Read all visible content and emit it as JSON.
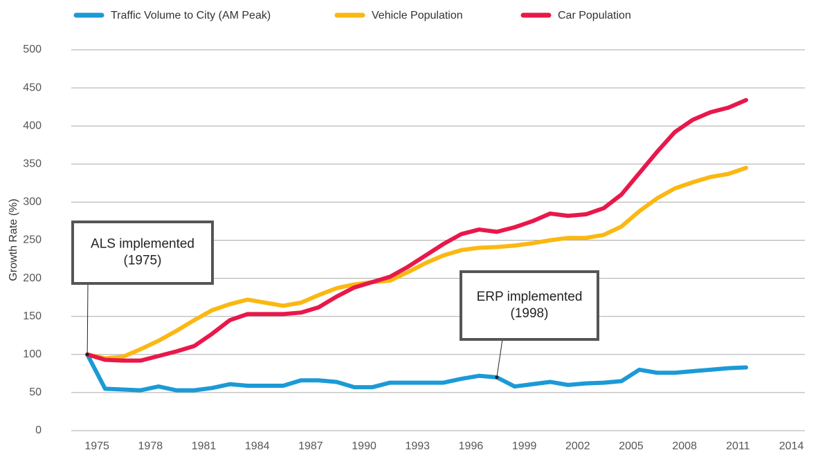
{
  "chart_data": {
    "type": "line",
    "y_label": "Growth Rate (%)",
    "x": [
      1975,
      1976,
      1977,
      1978,
      1979,
      1980,
      1981,
      1982,
      1983,
      1984,
      1985,
      1986,
      1987,
      1988,
      1989,
      1990,
      1991,
      1992,
      1993,
      1994,
      1995,
      1996,
      1997,
      1998,
      1999,
      2000,
      2001,
      2002,
      2003,
      2004,
      2005,
      2006,
      2007,
      2008,
      2009,
      2010,
      2011,
      2012
    ],
    "series": [
      {
        "name": "Traffic Volume to City (AM Peak)",
        "color": "#1b9ad6",
        "values": [
          100,
          55,
          54,
          53,
          58,
          53,
          53,
          56,
          61,
          59,
          59,
          59,
          66,
          66,
          64,
          57,
          57,
          63,
          63,
          63,
          63,
          68,
          72,
          70,
          58,
          61,
          64,
          60,
          62,
          63,
          65,
          80,
          76,
          76,
          78,
          80,
          82,
          83
        ]
      },
      {
        "name": "Vehicle Population",
        "color": "#fbb812",
        "values": [
          100,
          95,
          97,
          107,
          118,
          131,
          145,
          158,
          166,
          172,
          168,
          164,
          168,
          178,
          187,
          192,
          195,
          197,
          208,
          220,
          230,
          237,
          240,
          241,
          243,
          246,
          250,
          253,
          253,
          257,
          268,
          288,
          305,
          318,
          326,
          333,
          337,
          345
        ]
      },
      {
        "name": "Car Population",
        "color": "#e8184b",
        "values": [
          100,
          93,
          92,
          92,
          98,
          104,
          111,
          127,
          145,
          153,
          153,
          153,
          155,
          162,
          176,
          188,
          195,
          202,
          215,
          230,
          245,
          258,
          264,
          261,
          267,
          275,
          285,
          282,
          284,
          292,
          310,
          338,
          366,
          392,
          408,
          418,
          424,
          434
        ]
      }
    ],
    "annotations": [
      {
        "text": [
          "ALS implemented",
          "(1975)"
        ],
        "x": 1975,
        "y": 100
      },
      {
        "text": [
          "ERP implemented",
          "(1998)"
        ],
        "x": 1998,
        "y": 70
      }
    ],
    "xlim": [
      1974.1,
      2015.3
    ],
    "xticks": [
      1975,
      1978,
      1981,
      1984,
      1987,
      1990,
      1993,
      1996,
      1999,
      2002,
      2005,
      2008,
      2011,
      2014
    ],
    "ylim": [
      0,
      500
    ],
    "yticks": [
      0,
      50,
      100,
      150,
      200,
      250,
      300,
      350,
      400,
      450,
      500
    ],
    "grid": true,
    "legend": "top"
  }
}
